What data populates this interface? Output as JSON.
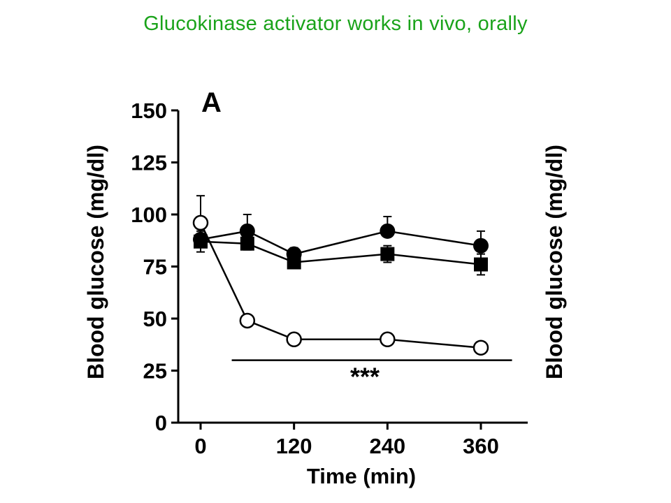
{
  "slide": {
    "title": "Glucokinase activator works in vivo, orally",
    "title_color": "#1aa31a"
  },
  "chart_data": {
    "type": "line",
    "panel_label": "A",
    "xlabel": "Time (min)",
    "ylabel": "Blood glucose (mg/dl)",
    "ylabel_right": "Blood glucose (mg/dl)",
    "ylim": [
      0,
      150
    ],
    "yticks": [
      0,
      25,
      50,
      75,
      100,
      125,
      150
    ],
    "xlim": [
      -20,
      400
    ],
    "xticks": [
      0,
      120,
      240,
      360
    ],
    "annotation": "***",
    "significance_bar": {
      "x_start": 40,
      "x_end": 400,
      "y": 30
    },
    "series": [
      {
        "marker": "filled-circle",
        "x": [
          0,
          60,
          120,
          240,
          360
        ],
        "y": [
          88,
          92,
          81,
          92,
          85
        ],
        "err": [
          6,
          8,
          3,
          7,
          7
        ]
      },
      {
        "marker": "filled-square",
        "x": [
          0,
          60,
          120,
          240,
          360
        ],
        "y": [
          87,
          86,
          77,
          81,
          76
        ],
        "err": [
          5,
          3,
          3,
          4,
          5
        ]
      },
      {
        "marker": "open-circle",
        "x": [
          0,
          60,
          120,
          240,
          360
        ],
        "y": [
          96,
          49,
          40,
          40,
          36
        ],
        "err": [
          13,
          0,
          0,
          0,
          0
        ]
      }
    ]
  }
}
